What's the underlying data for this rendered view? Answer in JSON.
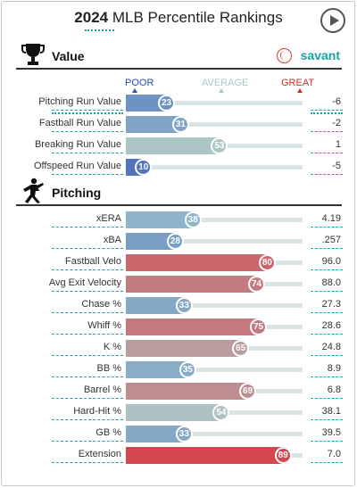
{
  "header": {
    "year": "2024",
    "title": "MLB Percentile Rankings"
  },
  "brand": {
    "name": "savant"
  },
  "scale": {
    "poor": "POOR",
    "average": "AVERAGE",
    "great": "GREAT"
  },
  "sections": [
    {
      "title": "Value",
      "icon": "trophy-icon",
      "rows": [
        {
          "name": "Pitching Run Value",
          "percentile": 23,
          "value": "-6"
        },
        {
          "name": "Fastball Run Value",
          "percentile": 31,
          "value": "-2"
        },
        {
          "name": "Breaking Run Value",
          "percentile": 53,
          "value": "1"
        },
        {
          "name": "Offspeed Run Value",
          "percentile": 10,
          "value": "-5"
        }
      ]
    },
    {
      "title": "Pitching",
      "icon": "pitcher-icon",
      "rows": [
        {
          "name": "xERA",
          "percentile": 38,
          "value": "4.19"
        },
        {
          "name": "xBA",
          "percentile": 28,
          "value": ".257"
        },
        {
          "name": "Fastball Velo",
          "percentile": 80,
          "value": "96.0"
        },
        {
          "name": "Avg Exit Velocity",
          "percentile": 74,
          "value": "88.0"
        },
        {
          "name": "Chase %",
          "percentile": 33,
          "value": "27.3"
        },
        {
          "name": "Whiff %",
          "percentile": 75,
          "value": "28.6"
        },
        {
          "name": "K %",
          "percentile": 65,
          "value": "24.8"
        },
        {
          "name": "BB %",
          "percentile": 35,
          "value": "8.9"
        },
        {
          "name": "Barrel %",
          "percentile": 69,
          "value": "6.8"
        },
        {
          "name": "Hard-Hit %",
          "percentile": 54,
          "value": "38.1"
        },
        {
          "name": "GB %",
          "percentile": 33,
          "value": "39.5"
        },
        {
          "name": "Extension",
          "percentile": 89,
          "value": "7.0"
        }
      ]
    }
  ],
  "colors": {
    "poor": "#3a5fb8",
    "average": "#a9cfcf",
    "great": "#e0202a",
    "accent": "#1aa3a3"
  }
}
